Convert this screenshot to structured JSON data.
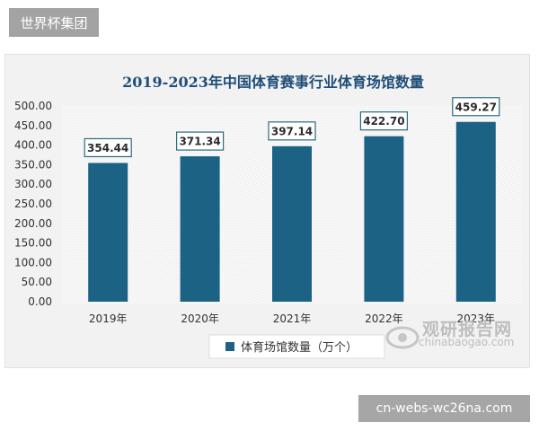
{
  "top_tag": {
    "label": "世界杯集团"
  },
  "bottom_tag": {
    "label": "cn-webs-wc26na.com"
  },
  "watermark": {
    "cn": "观研报告网",
    "en": "chinabaogao.com"
  },
  "colors": {
    "bar": "#1b6285",
    "label_border": "#2a6a7f",
    "title": "#1f4e79"
  },
  "chart_data": {
    "type": "bar",
    "title": "2019-2023年中国体育赛事行业体育场馆数量",
    "categories": [
      "2019年",
      "2020年",
      "2021年",
      "2022年",
      "2023年"
    ],
    "series": [
      {
        "name": "体育场馆数量（万个）",
        "values": [
          354.44,
          371.34,
          397.14,
          422.7,
          459.27
        ]
      }
    ],
    "value_labels": [
      "354.44",
      "371.34",
      "397.14",
      "422.70",
      "459.27"
    ],
    "yticks": [
      "0.00",
      "50.00",
      "100.00",
      "150.00",
      "200.00",
      "250.00",
      "300.00",
      "350.00",
      "400.00",
      "450.00",
      "500.00"
    ],
    "ylim": [
      0,
      500
    ],
    "legend": "bottom",
    "grid": false
  }
}
